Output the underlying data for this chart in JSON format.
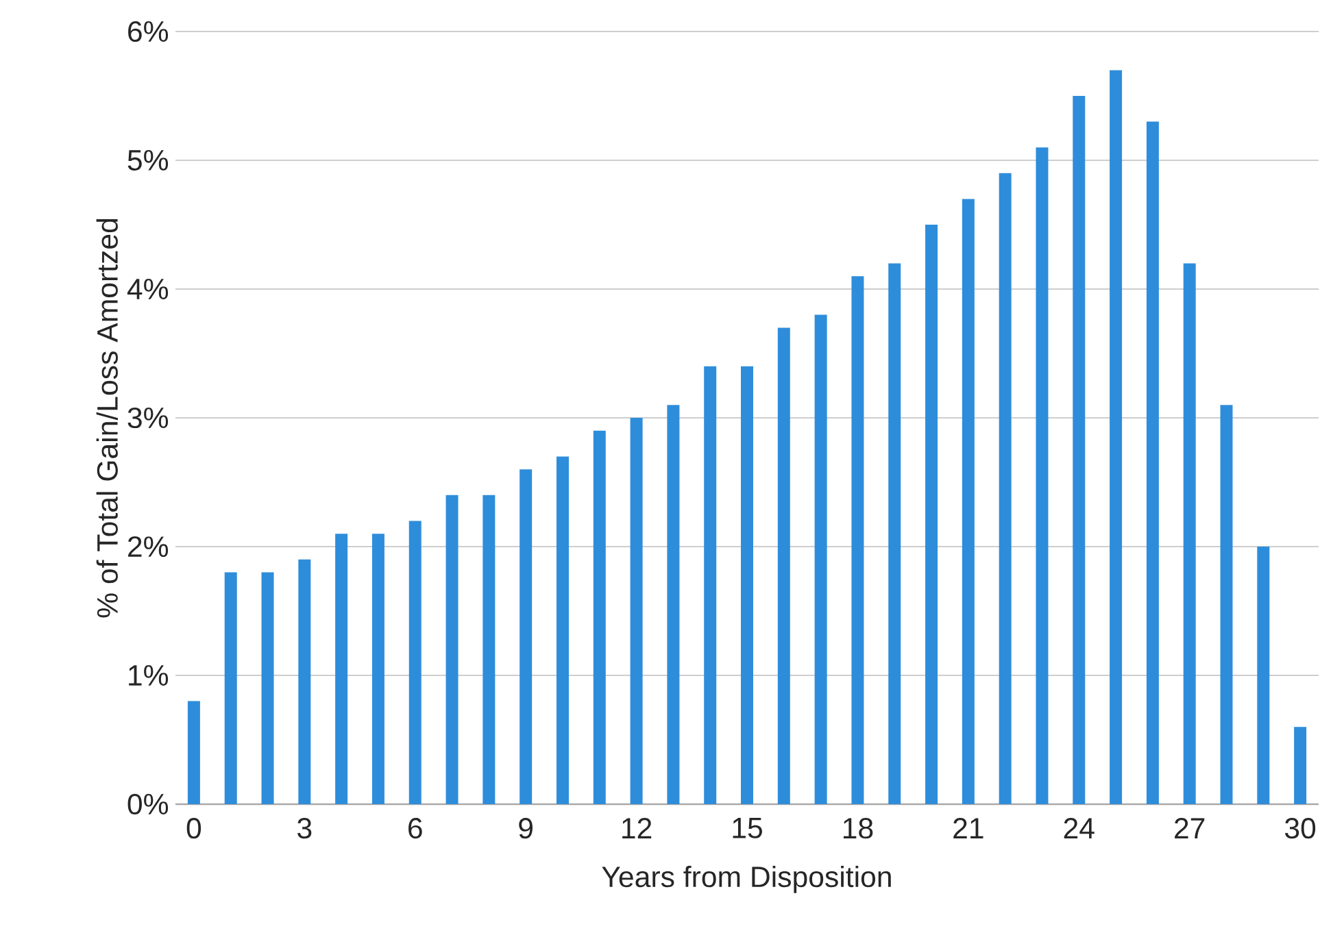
{
  "chart_data": {
    "type": "bar",
    "xlabel": "Years from Disposition",
    "ylabel": "% of Total Gain/Loss Amortzed",
    "categories": [
      "0",
      null,
      null,
      "3",
      null,
      null,
      "6",
      null,
      null,
      "9",
      null,
      null,
      "12",
      null,
      null,
      "15",
      null,
      null,
      "18",
      null,
      null,
      "21",
      null,
      null,
      "24",
      null,
      null,
      "27",
      null,
      null,
      "30"
    ],
    "values": [
      0.8,
      1.8,
      1.8,
      1.9,
      2.1,
      2.1,
      2.2,
      2.4,
      2.4,
      2.6,
      2.7,
      2.9,
      3.0,
      3.1,
      3.4,
      3.4,
      3.7,
      3.8,
      4.1,
      4.2,
      4.5,
      4.7,
      4.9,
      5.1,
      5.5,
      5.7,
      5.3,
      4.2,
      3.1,
      2.0,
      0.6
    ],
    "color": "#2e8ddb",
    "ylim": [
      0,
      6
    ],
    "yticks": [
      {
        "value": 0,
        "label": "0%"
      },
      {
        "value": 1,
        "label": "1%"
      },
      {
        "value": 2,
        "label": "2%"
      },
      {
        "value": 3,
        "label": "3%"
      },
      {
        "value": 4,
        "label": "4%"
      },
      {
        "value": 5,
        "label": "5%"
      },
      {
        "value": 6,
        "label": "6%"
      }
    ],
    "grid": "y"
  }
}
